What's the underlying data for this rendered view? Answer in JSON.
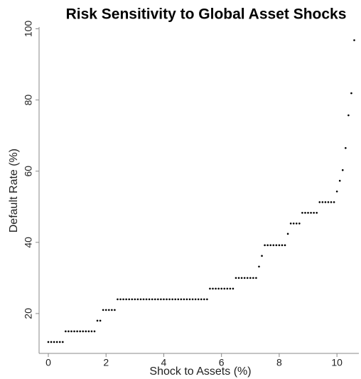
{
  "chart_data": {
    "type": "scatter",
    "title": "Risk Sensitivity to Global Asset Shocks",
    "x_label": "Shock to Assets (%)",
    "y_label": "Default Rate (%)",
    "x": [
      0,
      0.1,
      0.2,
      0.3,
      0.4,
      0.5,
      0.6,
      0.7,
      0.8,
      0.9,
      1.0,
      1.1,
      1.2,
      1.3,
      1.4,
      1.5,
      1.6,
      1.7,
      1.8,
      1.9,
      2.0,
      2.1,
      2.2,
      2.3,
      2.4,
      2.5,
      2.6,
      2.7,
      2.8,
      2.9,
      3.0,
      3.1,
      3.2,
      3.3,
      3.4,
      3.5,
      3.6,
      3.7,
      3.8,
      3.9,
      4.0,
      4.1,
      4.2,
      4.3,
      4.4,
      4.5,
      4.6,
      4.7,
      4.8,
      4.9,
      5.0,
      5.1,
      5.2,
      5.3,
      5.4,
      5.5,
      5.6,
      5.7,
      5.8,
      5.9,
      6.0,
      6.1,
      6.2,
      6.3,
      6.4,
      6.5,
      6.6,
      6.7,
      6.8,
      6.9,
      7.0,
      7.1,
      7.2,
      7.3,
      7.4,
      7.5,
      7.6,
      7.7,
      7.8,
      7.9,
      8.0,
      8.1,
      8.2,
      8.3,
      8.4,
      8.5,
      8.6,
      8.7,
      8.8,
      8.9,
      9.0,
      9.1,
      9.2,
      9.3,
      9.4,
      9.5,
      9.6,
      9.7,
      9.8,
      9.9,
      10.0,
      10.1,
      10.2,
      10.3,
      10.4,
      10.5,
      10.6
    ],
    "values": [
      12,
      12,
      12,
      12,
      12,
      12,
      15,
      15,
      15,
      15,
      15,
      15,
      15,
      15,
      15,
      15,
      15,
      18,
      18,
      21,
      21,
      21,
      21,
      21,
      24,
      24,
      24,
      24,
      24,
      24,
      24,
      24,
      24,
      24,
      24,
      24,
      24,
      24,
      24,
      24,
      24,
      24,
      24,
      24,
      24,
      24,
      24,
      24,
      24,
      24,
      24,
      24,
      24,
      24,
      24,
      24,
      27,
      27,
      27,
      27,
      27,
      27,
      27,
      27,
      27,
      30,
      30,
      30,
      30,
      30,
      30,
      30,
      30,
      33.2,
      36.2,
      39.2,
      39.2,
      39.2,
      39.2,
      39.2,
      39.2,
      39.2,
      39.2,
      42.4,
      45.3,
      45.3,
      45.3,
      45.3,
      48.3,
      48.3,
      48.3,
      48.3,
      48.3,
      48.3,
      51.3,
      51.3,
      51.3,
      51.3,
      51.3,
      51.3,
      54.3,
      57.3,
      60.3,
      66.5,
      75.7,
      81.9,
      96.8
    ],
    "color": "#000000",
    "xlim": [
      -0.32,
      10.76
    ],
    "xticks": [
      0,
      2,
      4,
      6,
      8,
      10
    ],
    "ylim": [
      8.8,
      100.5
    ],
    "yticks": [
      20,
      40,
      60,
      80,
      100
    ]
  }
}
